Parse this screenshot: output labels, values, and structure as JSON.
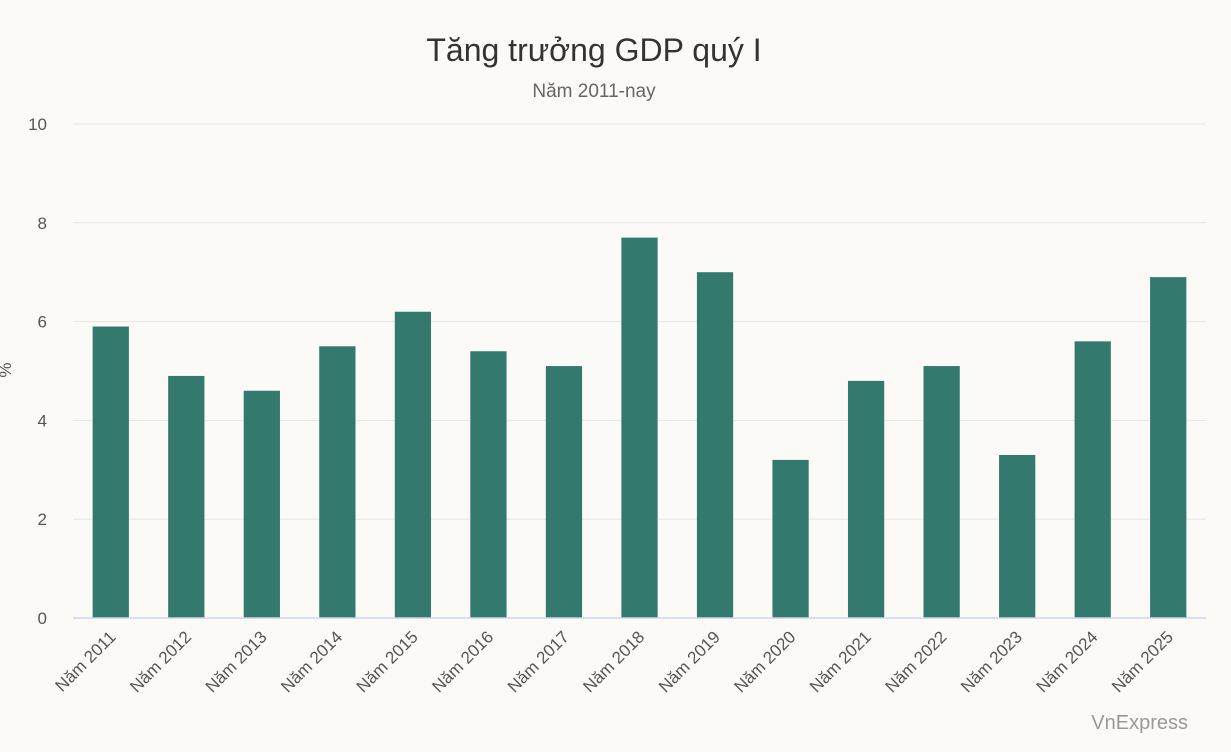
{
  "chart_data": {
    "type": "bar",
    "title": "Tăng trưởng GDP quý I",
    "subtitle": "Năm 2011-nay",
    "ylabel": "%",
    "xlabel": "",
    "ylim": [
      0,
      10
    ],
    "yticks": [
      0,
      2,
      4,
      6,
      8,
      10
    ],
    "grid": true,
    "categories": [
      "Năm 2011",
      "Năm 2012",
      "Năm 2013",
      "Năm 2014",
      "Năm 2015",
      "Năm 2016",
      "Năm 2017",
      "Năm 2018",
      "Năm 2019",
      "Năm 2020",
      "Năm 2021",
      "Năm 2022",
      "Năm 2023",
      "Năm 2024",
      "Năm 2025"
    ],
    "values": [
      5.9,
      4.9,
      4.6,
      5.5,
      6.2,
      5.4,
      5.1,
      7.7,
      7.0,
      3.2,
      4.8,
      5.1,
      3.3,
      5.6,
      6.9
    ],
    "bar_color": "#34796d",
    "grid_color": "#e6e6e6",
    "axis_color": "#ccd6eb"
  },
  "credit": "VnExpress"
}
